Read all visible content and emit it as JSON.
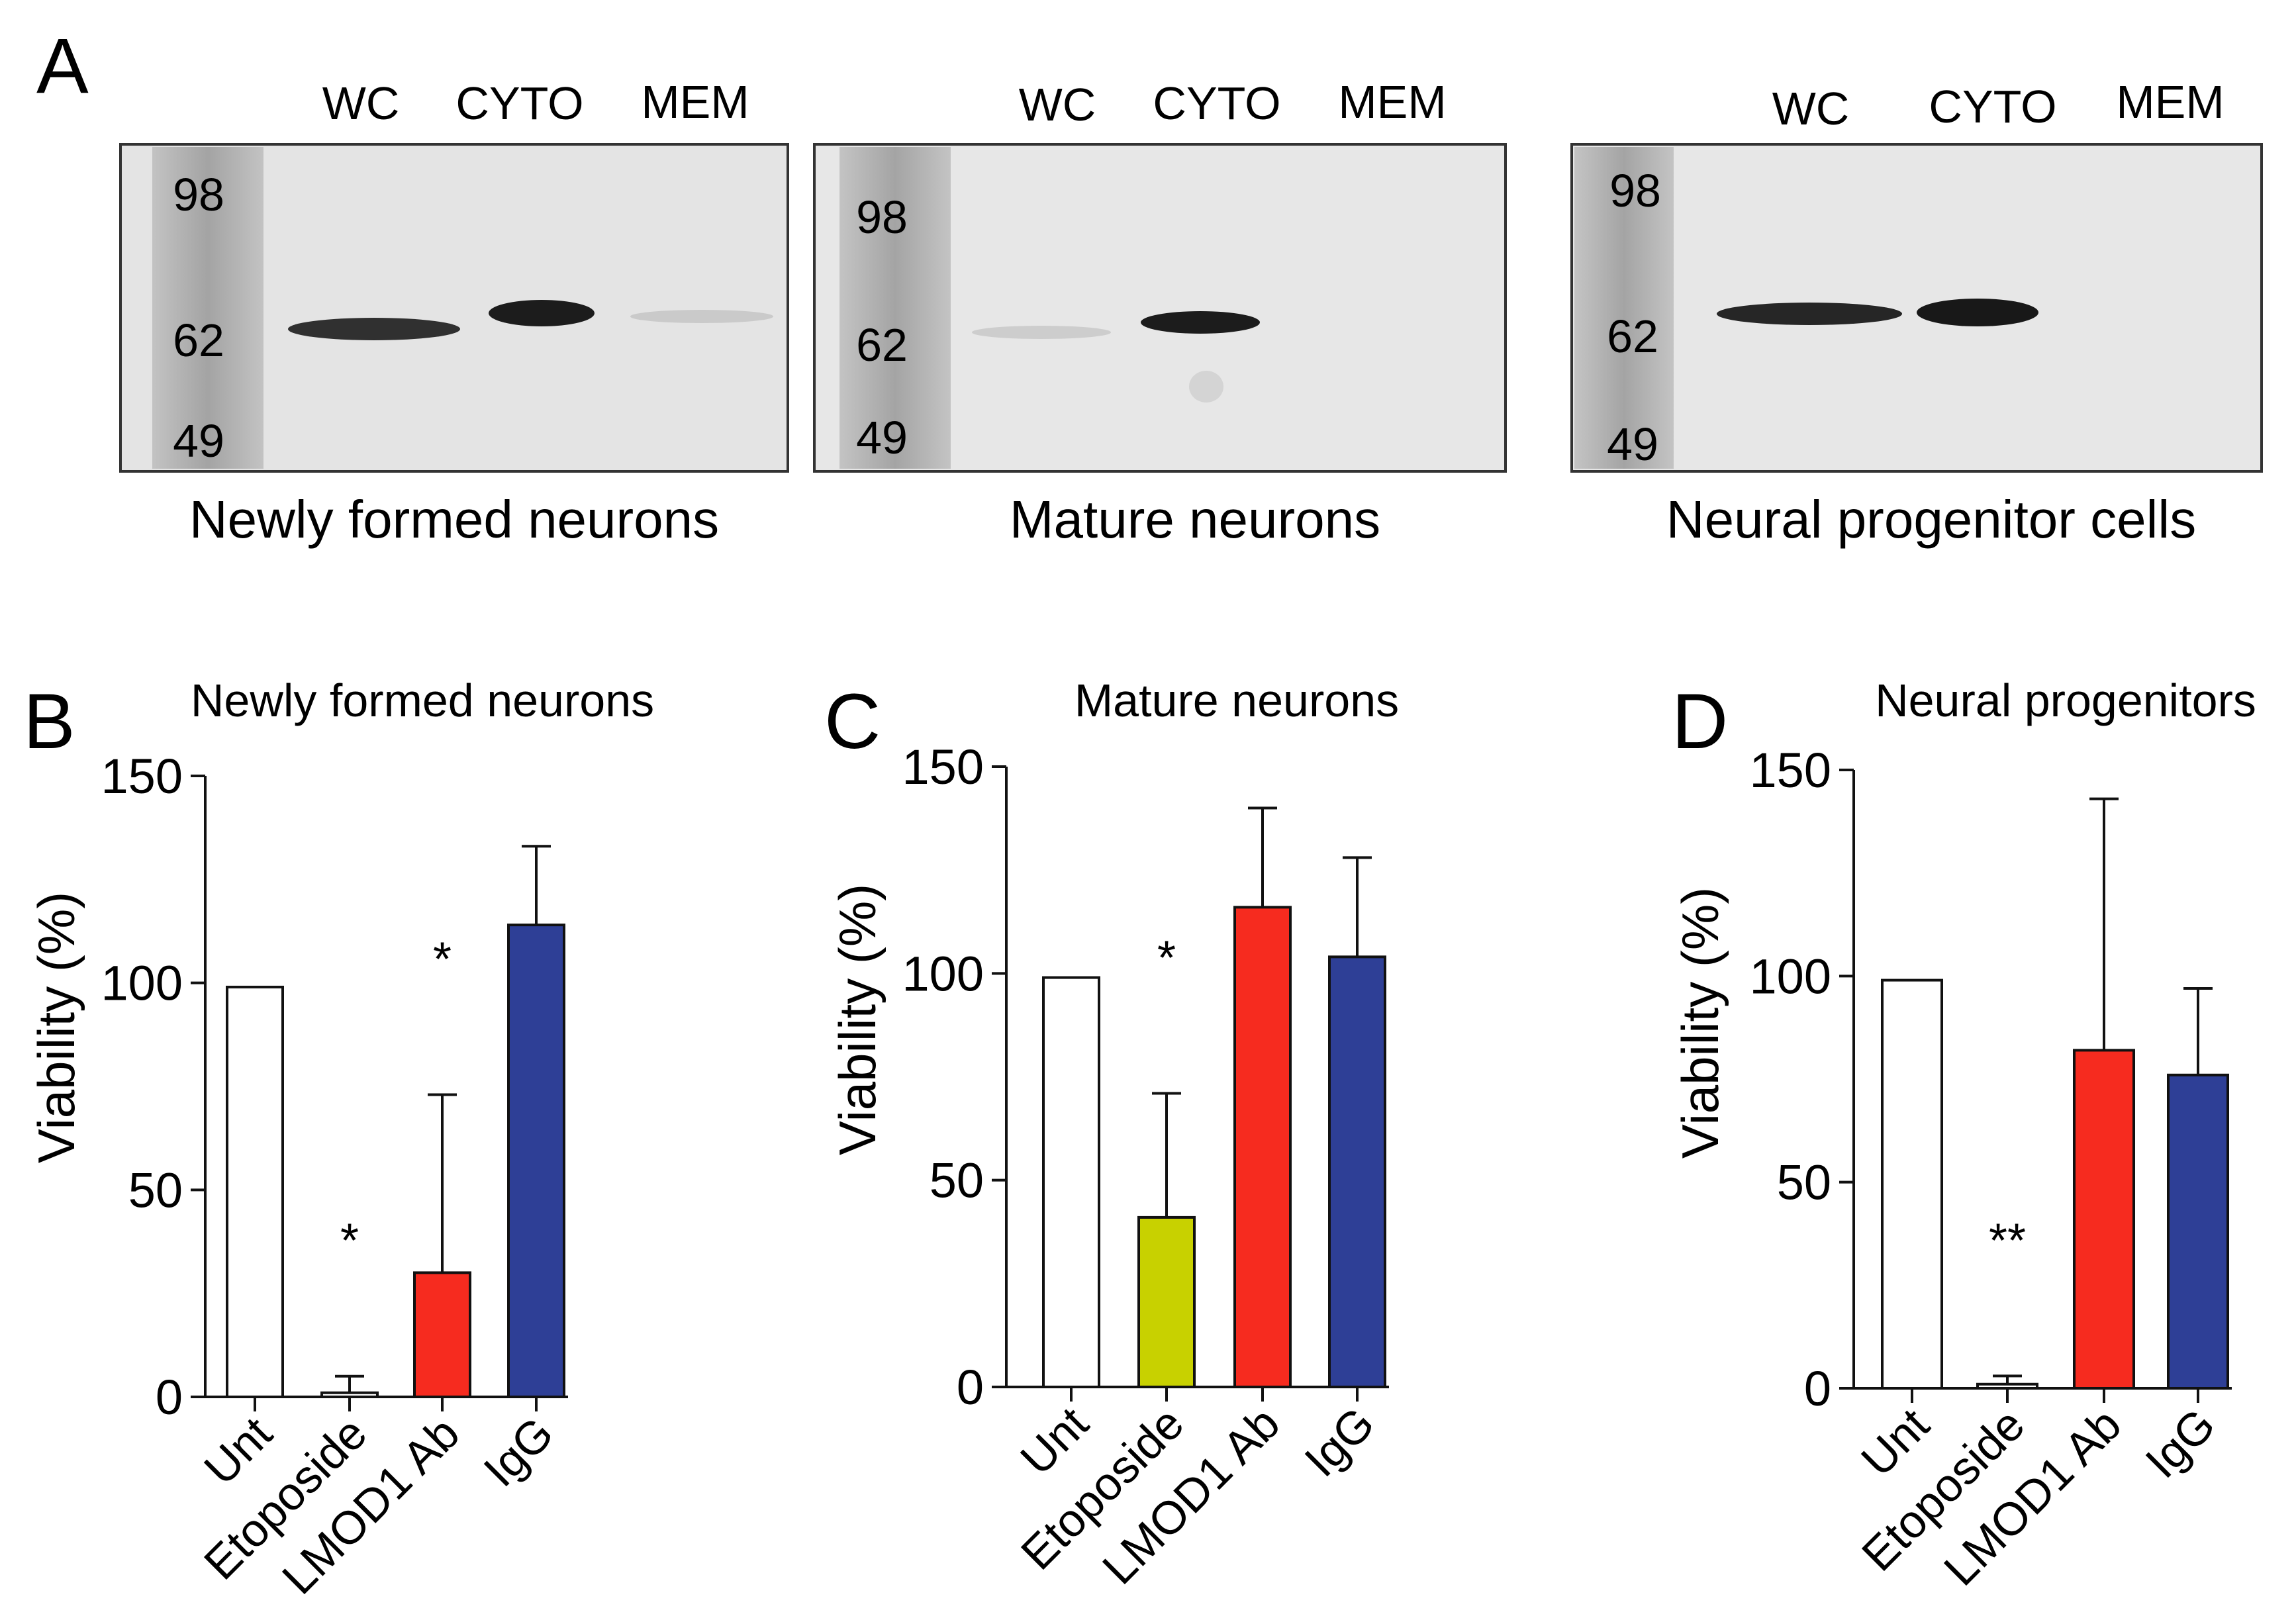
{
  "figure": {
    "panel_a": {
      "letter": "A",
      "lane_labels": [
        "WC",
        "CYTO",
        "MEM"
      ],
      "blots": [
        {
          "caption": "Newly formed neurons",
          "markers": [
            "98",
            "62",
            "49"
          ],
          "band_intensity": [
            0.85,
            0.95,
            0.12
          ]
        },
        {
          "caption": "Mature neurons",
          "markers": [
            "98",
            "62",
            "49"
          ],
          "band_intensity": [
            0.12,
            0.95,
            0.0
          ]
        },
        {
          "caption": "Neural progenitor cells",
          "markers": [
            "98",
            "62",
            "49"
          ],
          "band_intensity": [
            0.9,
            0.97,
            0.0
          ]
        }
      ]
    }
  },
  "chart_data": [
    {
      "type": "bar",
      "panel_letter": "B",
      "title": "Newly formed neurons",
      "ylabel": "Viability (%)",
      "ylim": [
        0,
        150
      ],
      "yticks": [
        "0",
        "50",
        "100",
        "150"
      ],
      "categories": [
        "Unt",
        "Etoposide",
        "LMOD1 Ab",
        "IgG"
      ],
      "values": [
        99,
        1,
        30,
        114
      ],
      "errors": [
        0,
        4,
        43,
        19
      ],
      "significance": [
        "",
        "*",
        "*",
        ""
      ],
      "colors": [
        "#ffffff",
        "#ffffff",
        "#f62b1f",
        "#2e3f96"
      ]
    },
    {
      "type": "bar",
      "panel_letter": "C",
      "title": "Mature neurons",
      "ylabel": "Viability (%)",
      "ylim": [
        0,
        150
      ],
      "yticks": [
        "0",
        "50",
        "100",
        "150"
      ],
      "categories": [
        "Unt",
        "Etoposide",
        "LMOD1 Ab",
        "IgG"
      ],
      "values": [
        99,
        41,
        116,
        104
      ],
      "errors": [
        0,
        30,
        24,
        24
      ],
      "significance": [
        "",
        "*",
        "",
        ""
      ],
      "colors": [
        "#ffffff",
        "#c8d100",
        "#f62b1f",
        "#2e3f96"
      ]
    },
    {
      "type": "bar",
      "panel_letter": "D",
      "title": "Neural progenitors",
      "ylabel": "Viability (%)",
      "ylim": [
        0,
        150
      ],
      "yticks": [
        "0",
        "50",
        "100",
        "150"
      ],
      "categories": [
        "Unt",
        "Etoposide",
        "LMOD1 Ab",
        "IgG"
      ],
      "values": [
        99,
        1,
        82,
        76
      ],
      "errors": [
        0,
        2,
        61,
        21
      ],
      "significance": [
        "",
        "**",
        "",
        ""
      ],
      "colors": [
        "#ffffff",
        "#ffffff",
        "#f62b1f",
        "#2e3f96"
      ]
    }
  ]
}
